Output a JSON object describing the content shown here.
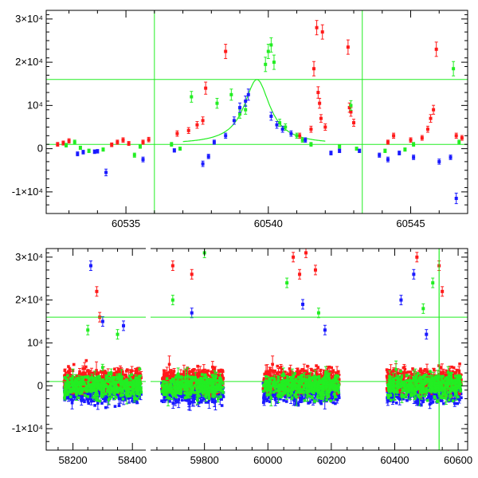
{
  "colors": {
    "red": "#ff1a1a",
    "green": "#22ee22",
    "blue": "#1a1aff",
    "line": "#22ee22",
    "frame": "#000000"
  },
  "chart_data": [
    {
      "id": "top",
      "type": "scatter",
      "title": "",
      "xlabel": "",
      "ylabel": "",
      "xlim": [
        60532.2,
        60547.0
      ],
      "ylim": [
        -15000,
        32000
      ],
      "xticks": [
        60535,
        60540,
        60545
      ],
      "xtick_labels": [
        "60535",
        "60540",
        "60545"
      ],
      "yticks": [
        -10000,
        0,
        10000,
        20000,
        30000
      ],
      "ytick_labels": [
        "-1×10⁴",
        "0",
        "10⁴",
        "2×10⁴",
        "3×10⁴"
      ],
      "hlines": [
        16000,
        1000
      ],
      "vlines": [
        60536.0,
        60543.3
      ],
      "model_curve": {
        "baseline": 1000,
        "peak": 16000,
        "t0": 60539.6,
        "width": 0.55
      },
      "series": [
        {
          "color": "red",
          "points": [
            [
              60532.6,
              1000
            ],
            [
              60532.8,
              1300
            ],
            [
              60533.0,
              1800
            ],
            [
              60534.5,
              900
            ],
            [
              60534.7,
              1500
            ],
            [
              60534.9,
              2000
            ],
            [
              60535.1,
              1200
            ],
            [
              60535.6,
              1500
            ],
            [
              60535.8,
              2100
            ],
            [
              60536.8,
              3500
            ],
            [
              60537.2,
              4200
            ],
            [
              60537.5,
              5500
            ],
            [
              60537.7,
              6500
            ],
            [
              60537.8,
              14000
            ],
            [
              60538.5,
              22500
            ],
            [
              60541.1,
              3000
            ],
            [
              60541.5,
              4500
            ],
            [
              60541.6,
              18500
            ],
            [
              60541.7,
              28000
            ],
            [
              60541.75,
              13000
            ],
            [
              60541.8,
              10500
            ],
            [
              60541.85,
              7000
            ],
            [
              60541.9,
              27000
            ],
            [
              60542.0,
              5000
            ],
            [
              60542.8,
              23500
            ],
            [
              60542.85,
              9500
            ],
            [
              60542.9,
              8500
            ],
            [
              60543.0,
              6000
            ],
            [
              60544.2,
              1500
            ],
            [
              60544.4,
              3000
            ],
            [
              60545.0,
              2000
            ],
            [
              60545.4,
              2500
            ],
            [
              60545.6,
              4500
            ],
            [
              60545.7,
              7000
            ],
            [
              60545.8,
              9000
            ],
            [
              60545.9,
              23000
            ],
            [
              60546.6,
              3000
            ],
            [
              60546.8,
              2500
            ]
          ]
        },
        {
          "color": "green",
          "points": [
            [
              60532.9,
              800
            ],
            [
              60533.2,
              1500
            ],
            [
              60533.4,
              200
            ],
            [
              60533.7,
              -500
            ],
            [
              60534.2,
              -200
            ],
            [
              60535.3,
              -1500
            ],
            [
              60535.5,
              500
            ],
            [
              60536.6,
              1000
            ],
            [
              60536.9,
              0
            ],
            [
              60537.3,
              12000
            ],
            [
              60538.2,
              10500
            ],
            [
              60538.7,
              12500
            ],
            [
              60539.0,
              8000
            ],
            [
              60539.2,
              9000
            ],
            [
              60539.9,
              19500
            ],
            [
              60540.0,
              22500
            ],
            [
              60540.1,
              24000
            ],
            [
              60540.2,
              20000
            ],
            [
              60540.4,
              6000
            ],
            [
              60540.6,
              5000
            ],
            [
              60541.0,
              3000
            ],
            [
              60541.2,
              2000
            ],
            [
              60541.5,
              1000
            ],
            [
              60542.5,
              500
            ],
            [
              60542.9,
              10000
            ],
            [
              60543.1,
              0
            ],
            [
              60544.1,
              -500
            ],
            [
              60544.8,
              -200
            ],
            [
              60545.1,
              1000
            ],
            [
              60546.5,
              18500
            ],
            [
              60546.7,
              1500
            ]
          ]
        },
        {
          "color": "blue",
          "points": [
            [
              60533.3,
              -1200
            ],
            [
              60533.5,
              -800
            ],
            [
              60533.9,
              -700
            ],
            [
              60534.0,
              -600
            ],
            [
              60534.3,
              -5500
            ],
            [
              60535.6,
              -2500
            ],
            [
              60536.7,
              -400
            ],
            [
              60537.7,
              -3500
            ],
            [
              60537.9,
              -1800
            ],
            [
              60538.1,
              1500
            ],
            [
              60538.5,
              3000
            ],
            [
              60538.8,
              6500
            ],
            [
              60539.0,
              9500
            ],
            [
              60539.2,
              11000
            ],
            [
              60539.3,
              12500
            ],
            [
              60540.1,
              7500
            ],
            [
              60540.3,
              5500
            ],
            [
              60540.5,
              4500
            ],
            [
              60540.8,
              3500
            ],
            [
              60541.3,
              2000
            ],
            [
              60542.2,
              -1000
            ],
            [
              60542.5,
              -500
            ],
            [
              60543.2,
              -500
            ],
            [
              60543.9,
              -1500
            ],
            [
              60544.2,
              -2500
            ],
            [
              60544.6,
              -1000
            ],
            [
              60545.1,
              -2000
            ],
            [
              60546.0,
              -3000
            ],
            [
              60546.4,
              -2000
            ],
            [
              60546.6,
              -11500
            ]
          ]
        }
      ]
    },
    {
      "id": "bottom",
      "type": "scatter",
      "title": "",
      "xlabel": "",
      "ylabel": "",
      "xlim": [
        58110,
        60630
      ],
      "xbreak": [
        58445,
        59630
      ],
      "ylim": [
        -15000,
        32000
      ],
      "xticks": [
        58200,
        58400,
        59800,
        60000,
        60200,
        60400,
        60600
      ],
      "xtick_labels": [
        "58200",
        "58400",
        "59800",
        "60000",
        "60200",
        "60400",
        "60600"
      ],
      "yticks": [
        -10000,
        0,
        10000,
        20000,
        30000
      ],
      "ytick_labels": [
        "-1×10⁴",
        "0",
        "10⁴",
        "2×10⁴",
        "3×10⁴"
      ],
      "hlines": [
        16000,
        1000
      ],
      "vlines": [
        60540
      ],
      "seasons": [
        [
          58170,
          58430
        ],
        [
          59665,
          59860
        ],
        [
          59985,
          60225
        ],
        [
          60375,
          60610
        ]
      ],
      "highlights": [
        {
          "color": "red",
          "points": [
            [
              58280,
              22000
            ],
            [
              58290,
              16000
            ],
            [
              59700,
              28000
            ],
            [
              59760,
              26000
            ],
            [
              60080,
              30000
            ],
            [
              60100,
              26000
            ],
            [
              60120,
              31000
            ],
            [
              60150,
              27000
            ],
            [
              60470,
              30000
            ],
            [
              60540,
              28000
            ],
            [
              60550,
              22000
            ]
          ]
        },
        {
          "color": "blue",
          "points": [
            [
              58260,
              28000
            ],
            [
              58300,
              15000
            ],
            [
              58370,
              14000
            ],
            [
              59760,
              17000
            ],
            [
              60110,
              19000
            ],
            [
              60180,
              13000
            ],
            [
              60420,
              20000
            ],
            [
              60460,
              26000
            ],
            [
              60500,
              12000
            ]
          ]
        },
        {
          "color": "green",
          "points": [
            [
              58250,
              13000
            ],
            [
              58350,
              12000
            ],
            [
              59700,
              20000
            ],
            [
              59800,
              31000
            ],
            [
              60060,
              24000
            ],
            [
              60160,
              17000
            ],
            [
              60490,
              18000
            ],
            [
              60520,
              24000
            ]
          ]
        }
      ]
    }
  ]
}
